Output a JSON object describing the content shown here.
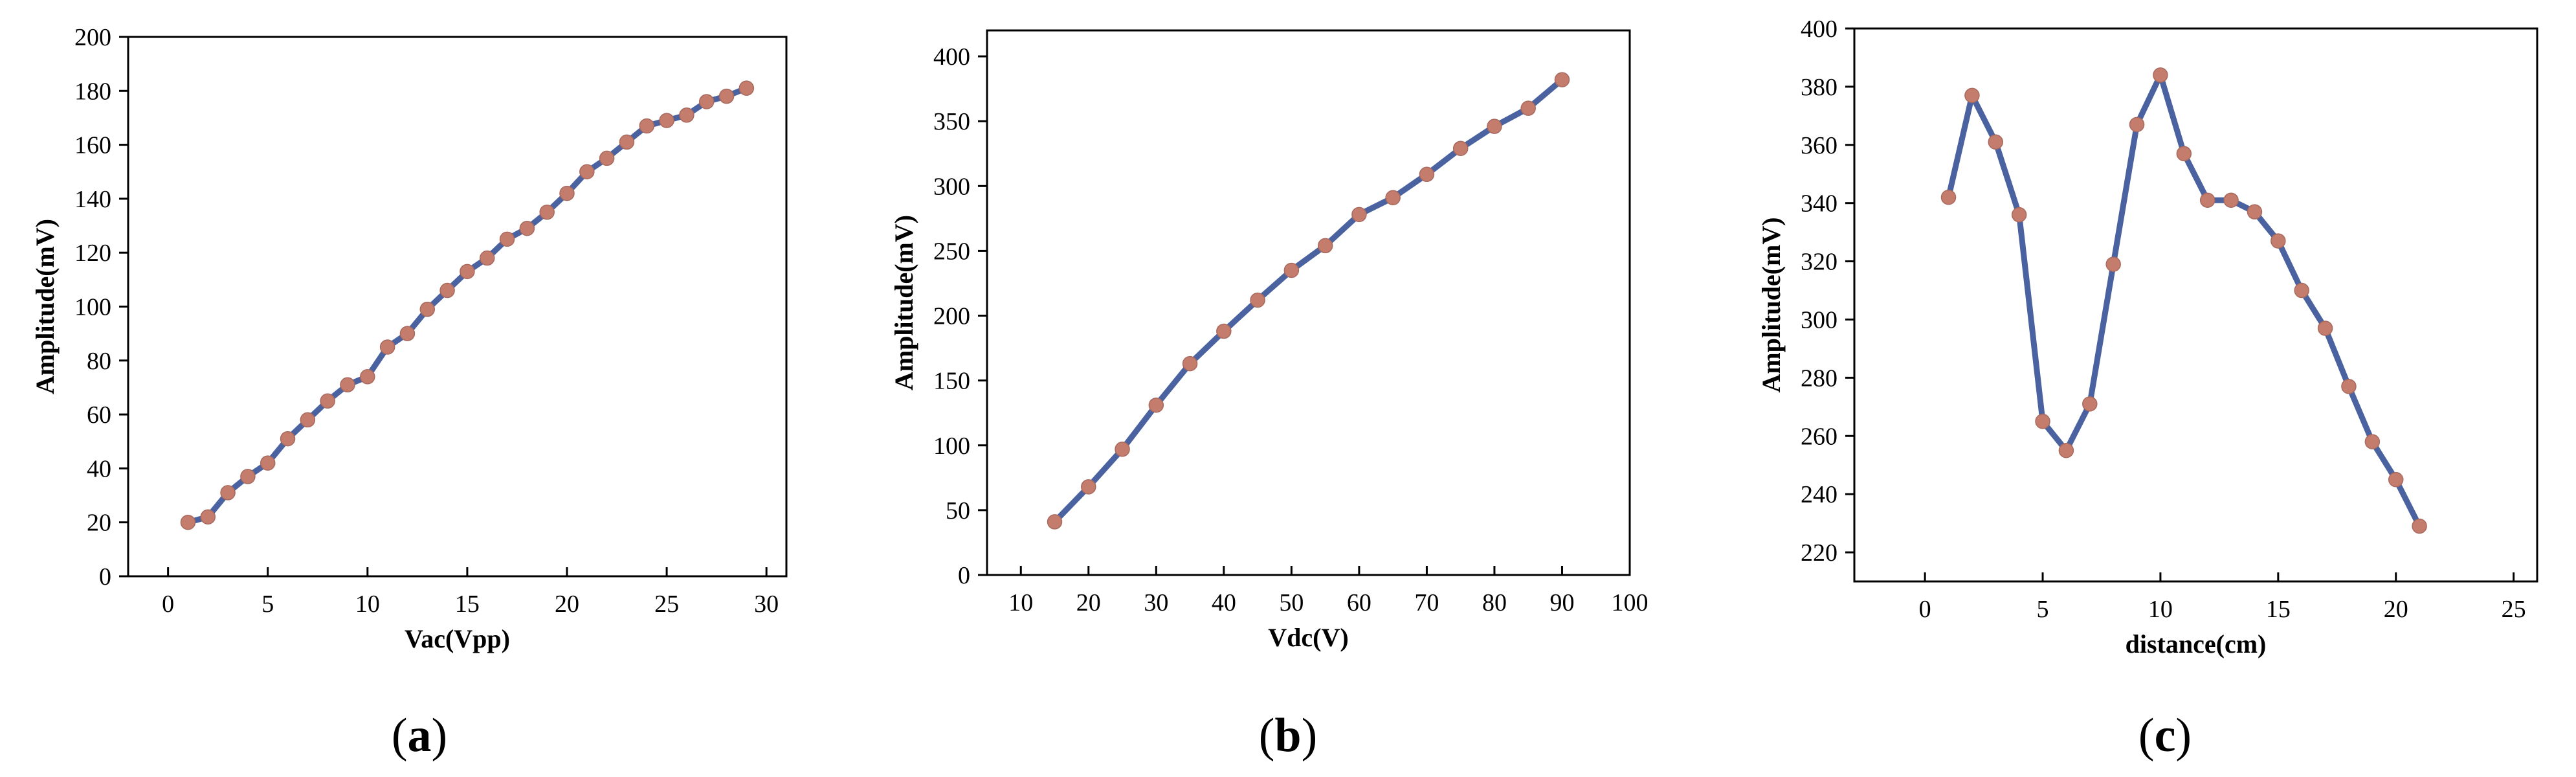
{
  "figure": {
    "colors": {
      "line": "#4a62a0",
      "marker": "#c47c6c"
    }
  },
  "chart_data": [
    {
      "type": "line",
      "panel_label": {
        "open": "(",
        "letter": "a",
        "close": ")"
      },
      "xlabel": "Vac(Vpp)",
      "ylabel": "Amplitude(mV)",
      "xlim": [
        -2,
        31
      ],
      "ylim": [
        0,
        200
      ],
      "xticks": [
        0,
        5,
        10,
        15,
        20,
        25,
        30
      ],
      "yticks": [
        0,
        20,
        40,
        60,
        80,
        100,
        120,
        140,
        160,
        180,
        200
      ],
      "x": [
        1,
        2,
        3,
        4,
        5,
        6,
        7,
        8,
        9,
        10,
        11,
        12,
        13,
        14,
        15,
        16,
        17,
        18,
        19,
        20,
        21,
        22,
        23,
        24,
        25,
        26,
        27,
        28,
        29
      ],
      "y": [
        20,
        22,
        31,
        37,
        42,
        51,
        58,
        65,
        71,
        74,
        85,
        90,
        99,
        106,
        113,
        118,
        125,
        129,
        135,
        142,
        150,
        155,
        161,
        167,
        169,
        171,
        176,
        178,
        181
      ]
    },
    {
      "type": "line",
      "panel_label": {
        "open": "(",
        "letter": "b",
        "close": ")"
      },
      "xlabel": "Vdc(V)",
      "ylabel": "Amplitude(mV)",
      "xlim": [
        5,
        100
      ],
      "ylim": [
        0,
        420
      ],
      "xticks": [
        10,
        20,
        30,
        40,
        50,
        60,
        70,
        80,
        90,
        100
      ],
      "yticks": [
        0,
        50,
        100,
        150,
        200,
        250,
        300,
        350,
        400
      ],
      "x": [
        15,
        20,
        25,
        30,
        35,
        40,
        45,
        50,
        55,
        60,
        65,
        70,
        75,
        80,
        85,
        90
      ],
      "y": [
        41,
        68,
        97,
        131,
        163,
        188,
        212,
        235,
        254,
        278,
        291,
        309,
        329,
        346,
        360,
        382
      ]
    },
    {
      "type": "line",
      "panel_label": {
        "open": "(",
        "letter": "c",
        "close": ")"
      },
      "xlabel": "distance(cm)",
      "ylabel": "Amplitude(mV)",
      "xlim": [
        -3,
        26
      ],
      "ylim": [
        210,
        400
      ],
      "xticks": [
        0,
        5,
        10,
        15,
        20,
        25
      ],
      "yticks": [
        220,
        240,
        260,
        280,
        300,
        320,
        340,
        360,
        380,
        400
      ],
      "x": [
        1,
        2,
        3,
        4,
        5,
        6,
        7,
        8,
        9,
        10,
        11,
        12,
        13,
        14,
        15,
        16,
        17,
        18,
        19,
        20,
        21
      ],
      "y": [
        342,
        377,
        361,
        336,
        265,
        255,
        271,
        319,
        367,
        384,
        357,
        341,
        341,
        337,
        327,
        310,
        297,
        277,
        258,
        245,
        229
      ]
    }
  ]
}
